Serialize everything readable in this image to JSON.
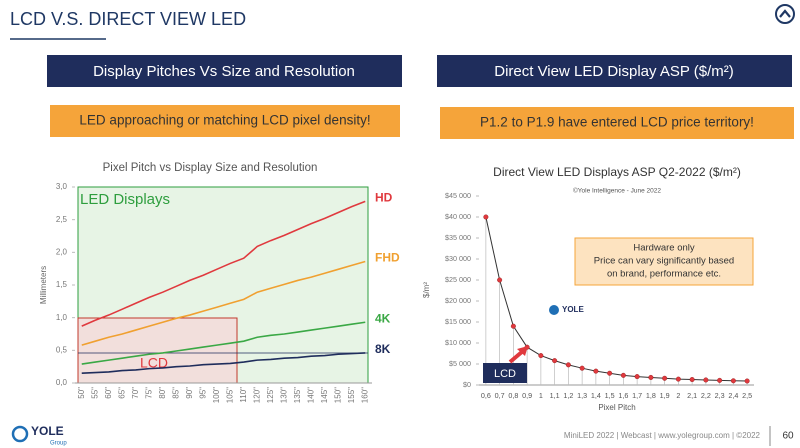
{
  "header": {
    "title": "LCD V.S. DIRECT VIEW LED"
  },
  "panels": [
    {
      "heading": "Display Pitches Vs Size and Resolution",
      "callout": "LED approaching or matching LCD pixel density!"
    },
    {
      "heading": "Direct View LED Display ASP ($/m²)",
      "callout": "P1.2 to P1.9 have entered LCD price territory!"
    }
  ],
  "chart_data": [
    {
      "type": "line",
      "title": "Pixel Pitch vs Display Size and Resolution",
      "y_label": "Millimeters",
      "categories": [
        "50\"",
        "55\"",
        "60\"",
        "65\"",
        "70\"",
        "75\"",
        "80\"",
        "85\"",
        "90\"",
        "95\"",
        "100\"",
        "105\"",
        "110\"",
        "120\"",
        "125\"",
        "130\"",
        "135\"",
        "140\"",
        "145\"",
        "150\"",
        "155\"",
        "160\""
      ],
      "series": [
        {
          "name": "HD",
          "color": "#e0393e",
          "values": [
            0.87,
            0.96,
            1.04,
            1.13,
            1.22,
            1.31,
            1.39,
            1.48,
            1.57,
            1.65,
            1.74,
            1.83,
            1.91,
            2.09,
            2.18,
            2.26,
            2.35,
            2.44,
            2.52,
            2.61,
            2.7,
            2.78
          ]
        },
        {
          "name": "FHD",
          "color": "#f0a030",
          "values": [
            0.58,
            0.64,
            0.7,
            0.75,
            0.81,
            0.87,
            0.93,
            0.99,
            1.04,
            1.1,
            1.16,
            1.22,
            1.28,
            1.39,
            1.45,
            1.51,
            1.57,
            1.62,
            1.68,
            1.74,
            1.8,
            1.86
          ]
        },
        {
          "name": "4K",
          "color": "#3aa845",
          "values": [
            0.29,
            0.32,
            0.35,
            0.38,
            0.41,
            0.44,
            0.46,
            0.49,
            0.52,
            0.55,
            0.58,
            0.61,
            0.64,
            0.7,
            0.73,
            0.75,
            0.78,
            0.81,
            0.84,
            0.87,
            0.9,
            0.93
          ]
        },
        {
          "name": "8K",
          "color": "#1f2d5c",
          "values": [
            0.15,
            0.16,
            0.17,
            0.19,
            0.2,
            0.22,
            0.23,
            0.25,
            0.26,
            0.28,
            0.29,
            0.3,
            0.32,
            0.35,
            0.36,
            0.38,
            0.39,
            0.41,
            0.42,
            0.44,
            0.45,
            0.46
          ]
        }
      ],
      "ylim": [
        0,
        3
      ],
      "yticks": [
        {
          "value": 0,
          "label": "0,0"
        },
        {
          "value": 0.5,
          "label": "0,5"
        },
        {
          "value": 1,
          "label": "1,0"
        },
        {
          "value": 1.5,
          "label": "1,5"
        },
        {
          "value": 2,
          "label": "2,0"
        },
        {
          "value": 2.5,
          "label": "2,5"
        },
        {
          "value": 3,
          "label": "3,0"
        }
      ],
      "annotations": [
        "LED Displays",
        "LCD"
      ]
    },
    {
      "type": "line",
      "title": "Direct View LED Displays ASP Q2-2022 ($/m²)",
      "subtitle": "©Yole Intelligence - June 2022",
      "y_label": "$/m²",
      "x_label": "Pixel Pitch",
      "categories": [
        "0,6",
        "0,7",
        "0,8",
        "0,9",
        "1",
        "1,1",
        "1,2",
        "1,3",
        "1,4",
        "1,5",
        "1,6",
        "1,7",
        "1,8",
        "1,9",
        "2",
        "2,1",
        "2,2",
        "2,3",
        "2,4",
        "2,5"
      ],
      "values": [
        40000,
        25000,
        14000,
        9000,
        7000,
        5800,
        4800,
        4000,
        3300,
        2800,
        2300,
        2000,
        1800,
        1600,
        1400,
        1300,
        1200,
        1100,
        1000,
        950
      ],
      "color": "#333333",
      "marker_color": "#e0393e",
      "ylim": [
        0,
        45000
      ],
      "yticks": [
        {
          "value": 0,
          "label": "$0"
        },
        {
          "value": 5000,
          "label": "$5 000"
        },
        {
          "value": 10000,
          "label": "$10 000"
        },
        {
          "value": 15000,
          "label": "$15 000"
        },
        {
          "value": 20000,
          "label": "$20 000"
        },
        {
          "value": 25000,
          "label": "$25 000"
        },
        {
          "value": 30000,
          "label": "$30 000"
        },
        {
          "value": 35000,
          "label": "$35 000"
        },
        {
          "value": 40000,
          "label": "$40 000"
        },
        {
          "value": 45000,
          "label": "$45 000"
        }
      ],
      "annotations": {
        "note": [
          "Hardware only",
          "Price can vary significantly based",
          "on brand, performance etc."
        ],
        "lcd": "LCD",
        "logo": "YOLE"
      }
    }
  ],
  "footer": {
    "logo": "YOLE",
    "logo_sub": "Group",
    "text": "MiniLED 2022 | Webcast | www.yolegroup.com | ©2022",
    "page": 60
  }
}
